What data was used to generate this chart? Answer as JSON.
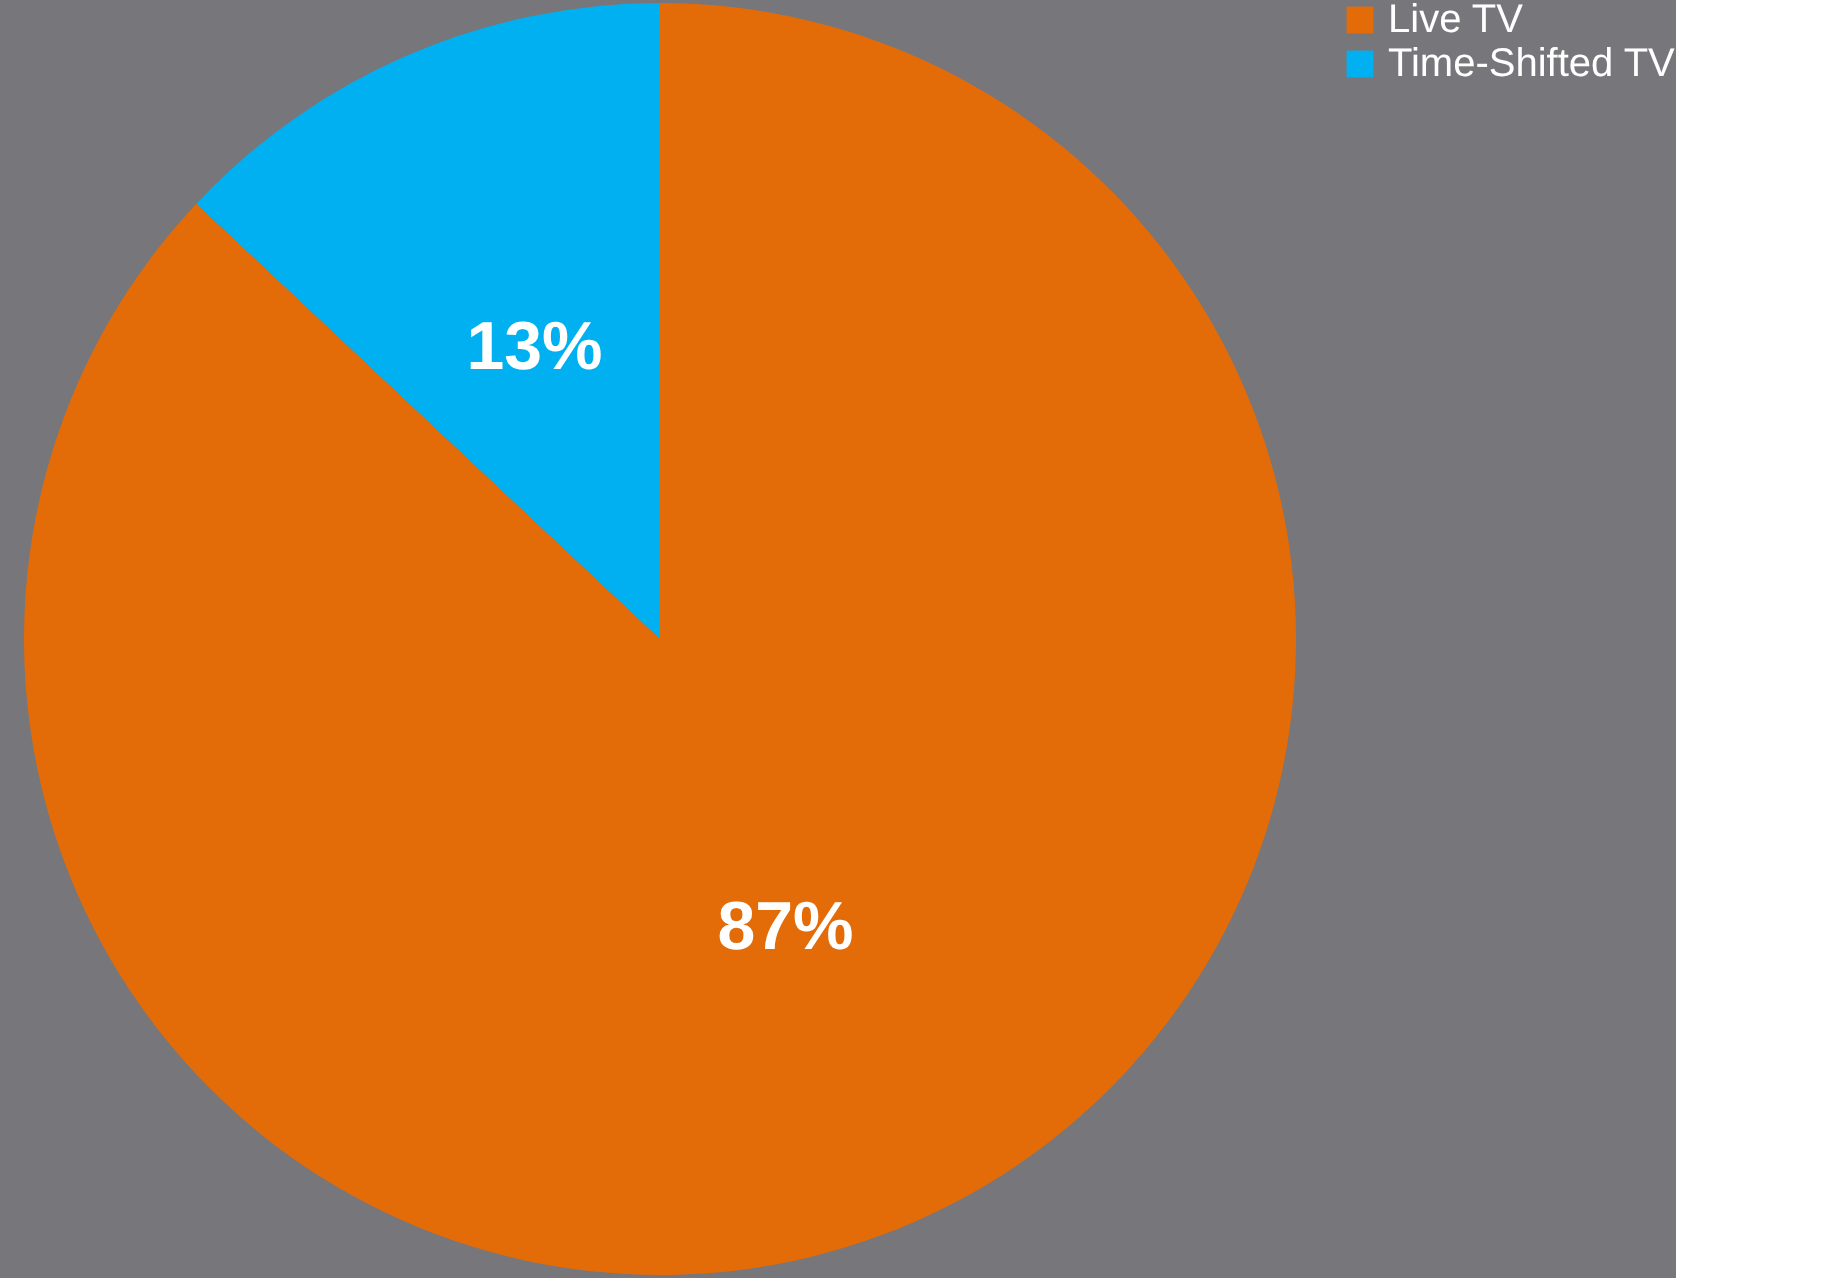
{
  "chart_data": {
    "type": "pie",
    "categories": [
      "Live TV",
      "Time-Shifted TV"
    ],
    "values": [
      87,
      13
    ],
    "colors": [
      "#e36c09",
      "#00b0f0"
    ],
    "value_labels": [
      "87%",
      "13%"
    ],
    "legend": "right"
  }
}
